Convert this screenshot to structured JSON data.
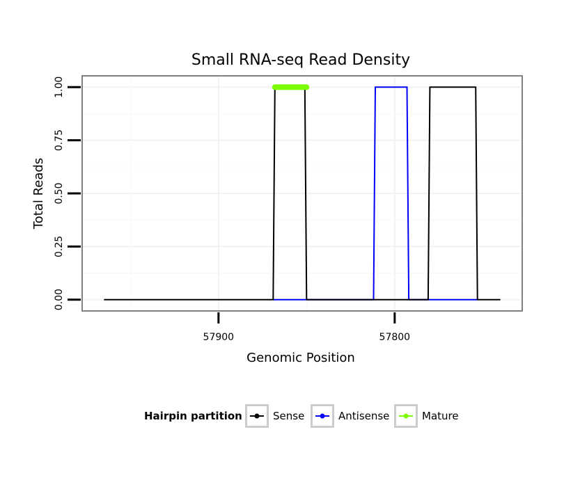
{
  "chart_data": {
    "type": "line",
    "title": "Small RNA-seq Read Density",
    "xlabel": "Genomic Position",
    "ylabel": "Total Reads",
    "x_reversed": true,
    "xlim": [
      57977,
      57728
    ],
    "ylim": [
      -0.05,
      1.05
    ],
    "x_ticks": [
      57900,
      57800
    ],
    "x_tick_labels": [
      "57900",
      "57800"
    ],
    "y_ticks": [
      0,
      0.25,
      0.5,
      0.75,
      1.0
    ],
    "y_tick_labels": [
      "0.00",
      "0.25",
      "0.50",
      "0.75",
      "1.00"
    ],
    "grid": true,
    "legend": {
      "title": "Hairpin partition",
      "position": "bottom",
      "entries": [
        "Sense",
        "Antisense",
        "Mature"
      ]
    },
    "series": [
      {
        "name": "Sense",
        "color": "#000000",
        "x": [
          57965,
          57869,
          57868,
          57851,
          57850,
          57781,
          57780,
          57754,
          57753,
          57740
        ],
        "y": [
          0,
          0,
          1,
          1,
          0,
          0,
          1,
          1,
          0,
          0
        ]
      },
      {
        "name": "Antisense",
        "color": "#0000ff",
        "x": [
          57869,
          57850,
          57812,
          57811,
          57793,
          57792,
          57753
        ],
        "y": [
          0,
          0,
          0,
          1,
          1,
          0,
          0
        ]
      },
      {
        "name": "Mature",
        "color": "#7cfc00",
        "x": [
          57868,
          57850
        ],
        "y": [
          1,
          1
        ]
      }
    ]
  }
}
